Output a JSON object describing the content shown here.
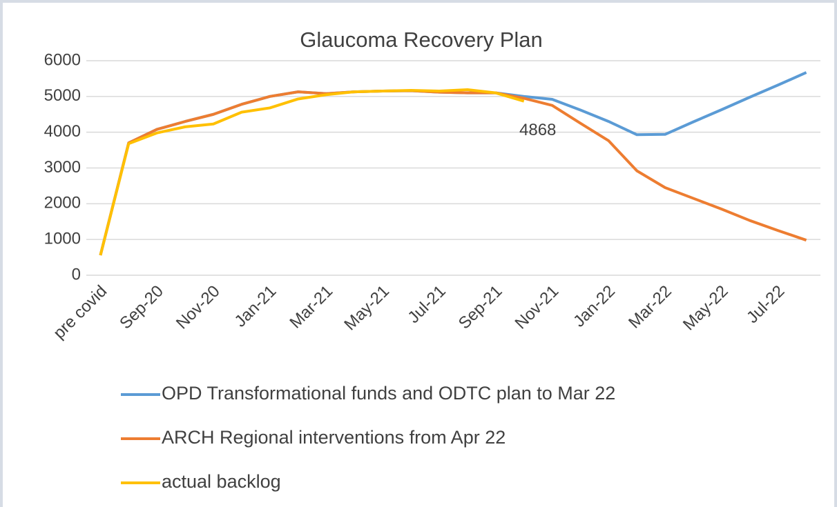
{
  "chart_data": {
    "type": "line",
    "title": "Glaucoma Recovery Plan",
    "categories": [
      "pre covid",
      null,
      "Sep-20",
      null,
      "Nov-20",
      null,
      "Jan-21",
      null,
      "Mar-21",
      null,
      "May-21",
      null,
      "Jul-21",
      null,
      "Sep-21",
      null,
      "Nov-21",
      null,
      "Jan-22",
      null,
      "Mar-22",
      null,
      "May-22",
      null,
      "Jul-22",
      null
    ],
    "series": [
      {
        "name": "OPD Transformational funds and ODTC plan to Mar 22",
        "color": "#5b9bd5",
        "values": [
          560,
          3700,
          4080,
          4300,
          4500,
          4780,
          5000,
          5130,
          5080,
          5130,
          5150,
          5160,
          5120,
          5100,
          5100,
          5000,
          4920,
          4620,
          4300,
          3930,
          3940,
          4290,
          4630,
          4980,
          5320,
          5670
        ]
      },
      {
        "name": "ARCH Regional interventions from Apr 22",
        "color": "#ed7d31",
        "values": [
          560,
          3700,
          4080,
          4300,
          4500,
          4780,
          5000,
          5130,
          5080,
          5130,
          5150,
          5160,
          5120,
          5100,
          5100,
          4950,
          4750,
          4250,
          3760,
          2920,
          2450,
          2150,
          1850,
          1530,
          1250,
          980
        ]
      },
      {
        "name": "actual backlog",
        "color": "#ffc000",
        "values": [
          560,
          3680,
          3980,
          4150,
          4230,
          4560,
          4680,
          4930,
          5050,
          5130,
          5150,
          5170,
          5150,
          5190,
          5100,
          4868,
          null,
          null,
          null,
          null,
          null,
          null,
          null,
          null,
          null,
          null
        ]
      }
    ],
    "annotations": [
      {
        "series": 2,
        "index": 15
      }
    ],
    "ylim": [
      0,
      6000
    ],
    "yticks": [
      0,
      1000,
      2000,
      3000,
      4000,
      5000,
      6000
    ],
    "grid": true,
    "legend": "bottom"
  }
}
